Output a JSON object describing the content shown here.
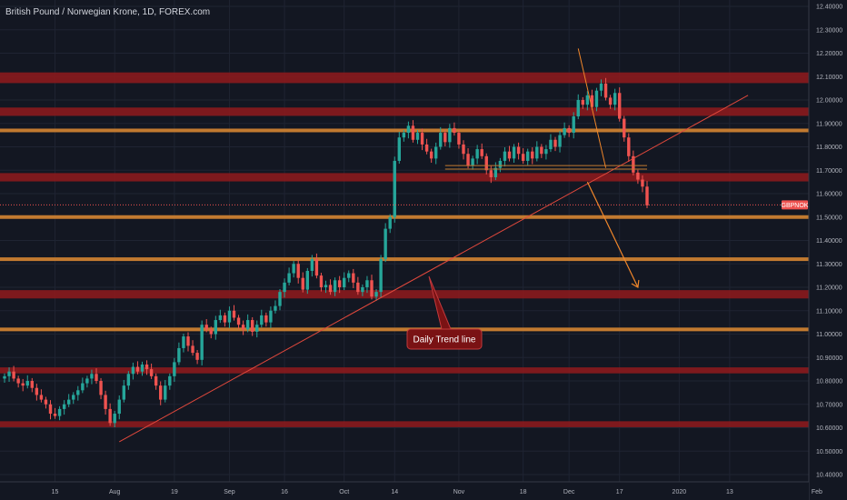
{
  "chart_data": {
    "type": "candlestick",
    "title": "British Pound / Norwegian Krone, 1D, FOREX.com",
    "y_ticks": [
      "12.40000",
      "12.30000",
      "12.20000",
      "12.10000",
      "12.00000",
      "11.90000",
      "11.80000",
      "11.70000",
      "11.60000",
      "11.50000",
      "11.40000",
      "11.30000",
      "11.20000",
      "11.10000",
      "11.00000",
      "10.90000",
      "10.80000",
      "10.70000",
      "10.60000",
      "10.50000",
      "10.40000"
    ],
    "ylim": [
      10.38,
      12.41
    ],
    "x_ticks": [
      {
        "label": "15",
        "i": 11
      },
      {
        "label": "Aug",
        "i": 24
      },
      {
        "label": "19",
        "i": 37
      },
      {
        "label": "Sep",
        "i": 49
      },
      {
        "label": "16",
        "i": 61
      },
      {
        "label": "Oct",
        "i": 74
      },
      {
        "label": "14",
        "i": 85
      },
      {
        "label": "Nov",
        "i": 99
      },
      {
        "label": "18",
        "i": 113
      },
      {
        "label": "Dec",
        "i": 123
      },
      {
        "label": "17",
        "i": 134
      },
      {
        "label": "2020",
        "i": 147
      },
      {
        "label": "13",
        "i": 158
      },
      {
        "label": "Feb",
        "i": 177
      }
    ],
    "close": [
      10.82,
      10.84,
      10.81,
      10.79,
      10.78,
      10.8,
      10.77,
      10.74,
      10.72,
      10.7,
      10.66,
      10.65,
      10.68,
      10.7,
      10.72,
      10.74,
      10.76,
      10.79,
      10.81,
      10.83,
      10.8,
      10.74,
      10.68,
      10.62,
      10.66,
      10.72,
      10.78,
      10.83,
      10.86,
      10.84,
      10.87,
      10.85,
      10.82,
      10.78,
      10.72,
      10.78,
      10.82,
      10.88,
      10.94,
      10.99,
      10.95,
      10.92,
      10.89,
      11.04,
      11.02,
      11.0,
      11.06,
      11.08,
      11.05,
      11.1,
      11.07,
      11.04,
      11.02,
      11.06,
      11.01,
      11.04,
      11.08,
      11.05,
      11.1,
      11.12,
      11.18,
      11.22,
      11.26,
      11.3,
      11.24,
      11.19,
      11.27,
      11.32,
      11.25,
      11.2,
      11.21,
      11.18,
      11.23,
      11.2,
      11.24,
      11.26,
      11.22,
      11.18,
      11.2,
      11.23,
      11.16,
      11.18,
      11.32,
      11.45,
      11.5,
      11.74,
      11.84,
      11.86,
      11.89,
      11.83,
      11.86,
      11.81,
      11.78,
      11.75,
      11.8,
      11.86,
      11.82,
      11.88,
      11.86,
      11.81,
      11.77,
      11.72,
      11.75,
      11.79,
      11.76,
      11.7,
      11.67,
      11.71,
      11.74,
      11.78,
      11.75,
      11.8,
      11.77,
      11.74,
      11.78,
      11.75,
      11.8,
      11.77,
      11.79,
      11.83,
      11.8,
      11.85,
      11.88,
      11.86,
      11.93,
      12.0,
      11.98,
      12.02,
      11.97,
      12.04,
      12.07,
      12.01,
      11.98,
      12.03,
      11.92,
      11.84,
      11.76,
      11.69,
      11.66,
      11.63,
      11.55
    ],
    "series": [
      {
        "name": "Daily Trend line",
        "from": {
          "i": 25,
          "y": 10.54
        },
        "to": {
          "i": 162,
          "y": 12.02
        }
      }
    ],
    "annotations": [
      {
        "text": "Daily Trend line"
      }
    ],
    "support_resistance": [
      {
        "kind": "red",
        "low": 12.08,
        "high": 12.11
      },
      {
        "kind": "red",
        "low": 11.94,
        "high": 11.96
      },
      {
        "kind": "red",
        "low": 11.66,
        "high": 11.68
      },
      {
        "kind": "red",
        "low": 11.16,
        "high": 11.18
      },
      {
        "kind": "red",
        "low": 10.84,
        "high": 10.85
      },
      {
        "kind": "red",
        "low": 10.61,
        "high": 10.62
      },
      {
        "kind": "orange",
        "value": 11.87
      },
      {
        "kind": "orange",
        "value": 11.5
      },
      {
        "kind": "orange",
        "value": 11.32
      },
      {
        "kind": "orange",
        "value": 11.02
      }
    ],
    "last_price": {
      "symbol": "GBPNOK",
      "value": "11.55177",
      "numeric": 11.55177
    },
    "grid": true,
    "colors": {
      "background": "#131722",
      "grid": "#1f2432",
      "up": "#26a69a",
      "down": "#ef5350",
      "zone_red": "#8b1a1d",
      "zone_orange": "#c27a30",
      "trend_red": "#e0483c",
      "arrow_orange": "#f0862a",
      "callout_bg": "#7a1214",
      "callout_border": "#c2393c"
    }
  }
}
